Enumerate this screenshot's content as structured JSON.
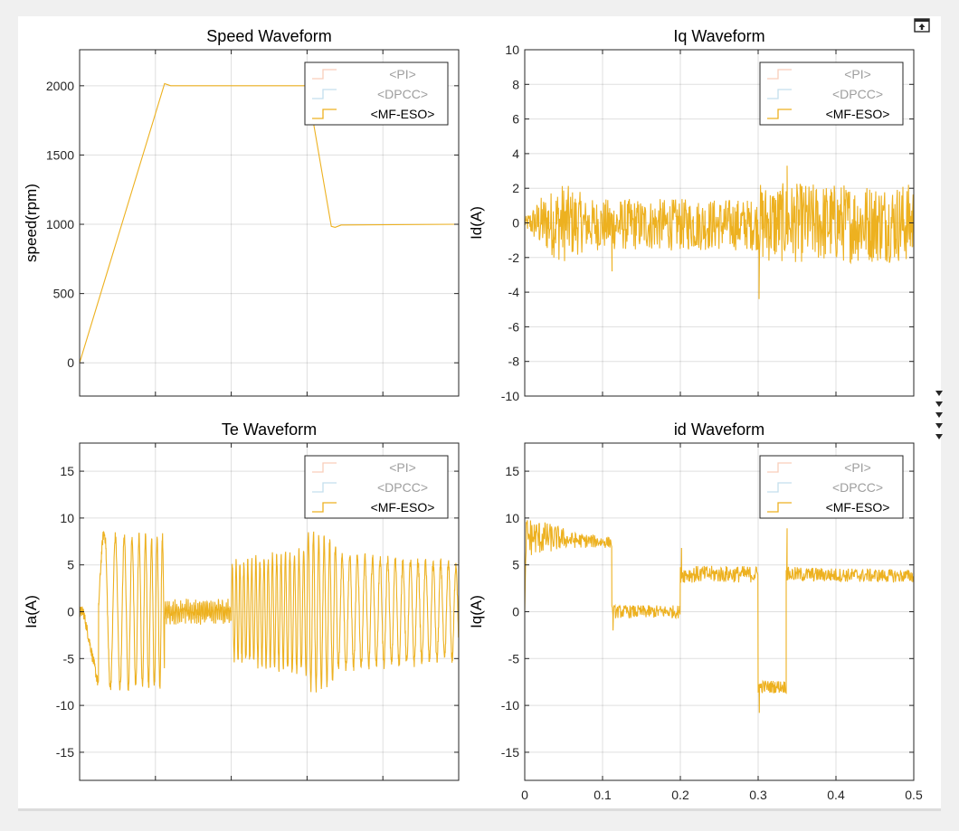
{
  "window": {
    "export_icon": "export-axes-icon",
    "dock_icon": "expand-arrows-icon"
  },
  "colors": {
    "pi": "#f4a582",
    "dpcc": "#92c5de",
    "mfeso": "#edb120",
    "axis": "#262626"
  },
  "chart_data": [
    {
      "id": "speed",
      "type": "line",
      "title": "Speed Waveform",
      "xlabel": "",
      "ylabel": "speed(rpm)",
      "xlim": [
        0,
        0.5
      ],
      "ylim": [
        -240,
        2260
      ],
      "xticks": [
        0,
        0.1,
        0.2,
        0.3,
        0.4,
        0.5
      ],
      "yticks": [
        0,
        500,
        1000,
        1500,
        2000
      ],
      "ytick_labels": [
        "0",
        "500",
        "1000",
        "1500",
        "2000"
      ],
      "show_xtick_labels": false,
      "grid": true,
      "legend": {
        "placement": "top-right",
        "entries": [
          "<PI>",
          "<DPCC>",
          "<MF-ESO>"
        ],
        "active": [
          false,
          false,
          true
        ]
      },
      "series": [
        {
          "name": "<MF-ESO>",
          "color": "#edb120",
          "noise": null,
          "points": [
            [
              0,
              0
            ],
            [
              0.112,
              2015
            ],
            [
              0.12,
              2000
            ],
            [
              0.3,
              2000
            ],
            [
              0.332,
              985
            ],
            [
              0.337,
              978
            ],
            [
              0.345,
              995
            ],
            [
              0.5,
              1000
            ]
          ]
        }
      ]
    },
    {
      "id": "iq",
      "type": "line",
      "title": "Iq Waveform",
      "xlabel": "",
      "ylabel": "Id(A)",
      "xlim": [
        0,
        0.5
      ],
      "ylim": [
        -10,
        10
      ],
      "xticks": [
        0,
        0.1,
        0.2,
        0.3,
        0.4,
        0.5
      ],
      "yticks": [
        -10,
        -8,
        -6,
        -4,
        -2,
        0,
        2,
        4,
        6,
        8,
        10
      ],
      "ytick_labels": [
        "-10",
        "-8",
        "-6",
        "-4",
        "-2",
        "0",
        "2",
        "4",
        "6",
        "8",
        "10"
      ],
      "show_xtick_labels": false,
      "grid": true,
      "legend": {
        "placement": "top-right",
        "entries": [
          "<PI>",
          "<DPCC>",
          "<MF-ESO>"
        ],
        "active": [
          false,
          false,
          true
        ]
      },
      "series": [
        {
          "name": "<MF-ESO>",
          "color": "#edb120",
          "noise": {
            "step": 0.0006,
            "segments": [
              {
                "from": 0,
                "to": 0.02,
                "base_from": 0,
                "base_to": 0,
                "amp_from": 0.3,
                "amp_to": 1.5
              },
              {
                "from": 0.02,
                "to": 0.05,
                "base_from": 0,
                "base_to": 0,
                "amp_from": 1.5,
                "amp_to": 2.4
              },
              {
                "from": 0.05,
                "to": 0.075,
                "base_from": 0,
                "base_to": 0,
                "amp_from": 2.3,
                "amp_to": 1.7
              },
              {
                "from": 0.075,
                "to": 0.3,
                "base_from": -0.1,
                "base_to": -0.1,
                "amp_from": 1.5,
                "amp_to": 1.5
              },
              {
                "from": 0.3,
                "to": 0.5,
                "base_from": 0,
                "base_to": 0,
                "amp_from": 2.3,
                "amp_to": 2.3
              }
            ],
            "spikes": [
              {
                "x": 0.1122,
                "y": -2.8
              },
              {
                "x": 0.3012,
                "y": -4.4
              },
              {
                "x": 0.3372,
                "y": 3.3
              }
            ]
          }
        }
      ]
    },
    {
      "id": "te",
      "type": "line",
      "title": "Te Waveform",
      "xlabel": "",
      "ylabel": "Ia(A)",
      "xlim": [
        0,
        0.5
      ],
      "ylim": [
        -18,
        18
      ],
      "xticks": [
        0,
        0.1,
        0.2,
        0.3,
        0.4,
        0.5
      ],
      "yticks": [
        -15,
        -10,
        -5,
        0,
        5,
        10,
        15
      ],
      "ytick_labels": [
        "-15",
        "-10",
        "-5",
        "0",
        "5",
        "10",
        "15"
      ],
      "show_xtick_labels": false,
      "grid": true,
      "legend": {
        "placement": "top-right",
        "entries": [
          "<PI>",
          "<DPCC>",
          "<MF-ESO>"
        ],
        "active": [
          false,
          false,
          true
        ]
      },
      "series": [
        {
          "name": "<MF-ESO>",
          "color": "#edb120",
          "sine": {
            "step": 0.0003,
            "jitter": 0.6,
            "segments": [
              {
                "from": 0,
                "to": 0.005,
                "amp_from": 0.3,
                "amp_to": 0.5,
                "freq_from": 0,
                "freq_to": 0,
                "offset": 0
              },
              {
                "from": 0.005,
                "to": 0.025,
                "amp_from": 0,
                "amp_to": 0,
                "freq_from": 0,
                "freq_to": 0,
                "offset_from": 0,
                "offset_to": -8
              },
              {
                "from": 0.025,
                "to": 0.035,
                "amp_from": 8,
                "amp_to": 8.5,
                "freq_from": 30,
                "freq_to": 40,
                "offset": 0
              },
              {
                "from": 0.035,
                "to": 0.112,
                "amp_from": 8,
                "amp_to": 8,
                "freq_from": 65,
                "freq_to": 150,
                "offset": 0
              },
              {
                "from": 0.112,
                "to": 0.2,
                "amp_from": 0.8,
                "amp_to": 0.8,
                "freq_from": 400,
                "freq_to": 400,
                "offset": 0
              },
              {
                "from": 0.2,
                "to": 0.3,
                "amp_from": 5,
                "amp_to": 6.5,
                "freq_from": 200,
                "freq_to": 160,
                "offset": 0
              },
              {
                "from": 0.3,
                "to": 0.34,
                "amp_from": 8.5,
                "amp_to": 7,
                "freq_from": 150,
                "freq_to": 130,
                "offset": 0
              },
              {
                "from": 0.34,
                "to": 0.5,
                "amp_from": 6,
                "amp_to": 5,
                "freq_from": 100,
                "freq_to": 100,
                "offset": 0
              }
            ]
          }
        }
      ]
    },
    {
      "id": "idw",
      "type": "line",
      "title": "id Waveform",
      "xlabel": "",
      "ylabel": "Iq(A)",
      "xlim": [
        0,
        0.5
      ],
      "ylim": [
        -18,
        18
      ],
      "xticks": [
        0,
        0.1,
        0.2,
        0.3,
        0.4,
        0.5
      ],
      "yticks": [
        -15,
        -10,
        -5,
        0,
        5,
        10,
        15
      ],
      "ytick_labels": [
        "-15",
        "-10",
        "-5",
        "0",
        "5",
        "10",
        "15"
      ],
      "xtick_labels": [
        "0",
        "0.1",
        "0.2",
        "0.3",
        "0.4",
        "0.5"
      ],
      "show_xtick_labels": true,
      "grid": true,
      "legend": {
        "placement": "top-right",
        "entries": [
          "<PI>",
          "<DPCC>",
          "<MF-ESO>"
        ],
        "active": [
          false,
          false,
          true
        ]
      },
      "series": [
        {
          "name": "<MF-ESO>",
          "color": "#edb120",
          "noise": {
            "step": 0.0006,
            "segments": [
              {
                "from": 0,
                "to": 0.002,
                "base_from": 0,
                "base_to": 8,
                "amp_from": 0.5,
                "amp_to": 1
              },
              {
                "from": 0.002,
                "to": 0.05,
                "base_from": 8,
                "base_to": 7.8,
                "amp_from": 2.2,
                "amp_to": 1.2
              },
              {
                "from": 0.05,
                "to": 0.112,
                "base_from": 7.7,
                "base_to": 7.4,
                "amp_from": 0.9,
                "amp_to": 0.6
              },
              {
                "from": 0.112,
                "to": 0.2,
                "base_from": 0,
                "base_to": 0,
                "amp_from": 0.7,
                "amp_to": 0.7
              },
              {
                "from": 0.2,
                "to": 0.3,
                "base_from": 4,
                "base_to": 4,
                "amp_from": 0.9,
                "amp_to": 0.9
              },
              {
                "from": 0.3,
                "to": 0.336,
                "base_from": -8,
                "base_to": -8,
                "amp_from": 0.7,
                "amp_to": 0.7
              },
              {
                "from": 0.336,
                "to": 0.5,
                "base_from": 4,
                "base_to": 3.8,
                "amp_from": 0.8,
                "amp_to": 0.7
              }
            ],
            "spikes": [
              {
                "x": 0.1135,
                "y": -2
              },
              {
                "x": 0.2015,
                "y": 6.8
              },
              {
                "x": 0.3015,
                "y": -10.8
              },
              {
                "x": 0.3372,
                "y": 8.9
              }
            ]
          }
        }
      ]
    }
  ]
}
